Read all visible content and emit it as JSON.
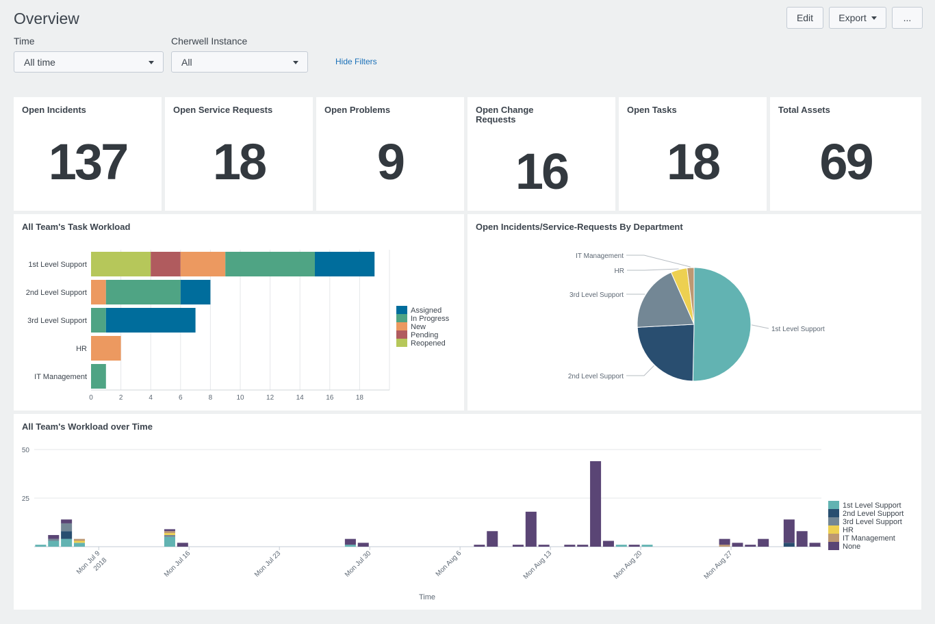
{
  "page": {
    "title": "Overview",
    "buttons": {
      "edit": "Edit",
      "export": "Export",
      "more": "..."
    }
  },
  "filters": {
    "time": {
      "label": "Time",
      "value": "All time"
    },
    "instance": {
      "label": "Cherwell Instance",
      "value": "All"
    },
    "hide_label": "Hide Filters"
  },
  "kpis": [
    {
      "title": "Open Incidents",
      "value": "137"
    },
    {
      "title": "Open Service Requests",
      "value": "18"
    },
    {
      "title": "Open Problems",
      "value": "9"
    },
    {
      "title": "Open Change Requests",
      "value": "16"
    },
    {
      "title": "Open Tasks",
      "value": "18"
    },
    {
      "title": "Total Assets",
      "value": "69"
    }
  ],
  "panels": {
    "task_workload": "All Team's Task Workload",
    "by_department": "Open Incidents/Service-Requests By Department",
    "over_time": "All Team's Workload over Time"
  },
  "chart_data": [
    {
      "type": "bar",
      "orientation": "horizontal",
      "stacked": true,
      "title": "All Team's Task Workload",
      "categories": [
        "1st Level Support",
        "2nd Level Support",
        "3rd Level Support",
        "HR",
        "IT Management"
      ],
      "series": [
        {
          "name": "Reopened",
          "color": "#b6c75a",
          "values": [
            4,
            0,
            0,
            0,
            0
          ]
        },
        {
          "name": "Pending",
          "color": "#b05b5e",
          "values": [
            2,
            0,
            0,
            0,
            0
          ]
        },
        {
          "name": "New",
          "color": "#ec9960",
          "values": [
            3,
            1,
            0,
            2,
            0
          ]
        },
        {
          "name": "In Progress",
          "color": "#4fa484",
          "values": [
            6,
            5,
            1,
            0,
            1
          ]
        },
        {
          "name": "Assigned",
          "color": "#006d9c",
          "values": [
            4,
            2,
            6,
            0,
            0
          ]
        }
      ],
      "legend_order": [
        "Assigned",
        "In Progress",
        "New",
        "Pending",
        "Reopened"
      ],
      "xlim": [
        0,
        20
      ],
      "xticks": [
        0,
        2,
        4,
        6,
        8,
        10,
        12,
        14,
        16,
        18
      ],
      "legend": "right"
    },
    {
      "type": "pie",
      "title": "Open Incidents/Service-Requests By Department",
      "slices": [
        {
          "label": "1st Level Support",
          "value": 76,
          "color": "#62b3b2"
        },
        {
          "label": "2nd Level Support",
          "value": 36,
          "color": "#294e70"
        },
        {
          "label": "3rd Level Support",
          "value": 29,
          "color": "#738795"
        },
        {
          "label": "HR",
          "value": 7,
          "color": "#edd051"
        },
        {
          "label": "IT Management",
          "value": 3,
          "color": "#bd9872"
        }
      ]
    },
    {
      "type": "bar",
      "stacked": true,
      "title": "All Team's Workload over Time",
      "xlabel": "Time",
      "ylabel": "",
      "ylim": [
        0,
        50
      ],
      "yticks": [
        25,
        50
      ],
      "tick_labels": [
        {
          "slot": 5,
          "text": "Mon Jul 9",
          "text2": "2018"
        },
        {
          "slot": 12,
          "text": "Mon Jul 16"
        },
        {
          "slot": 19,
          "text": "Mon Jul 23"
        },
        {
          "slot": 26,
          "text": "Mon Jul 30"
        },
        {
          "slot": 33,
          "text": "Mon Aug 6"
        },
        {
          "slot": 40,
          "text": "Mon Aug 13"
        },
        {
          "slot": 47,
          "text": "Mon Aug 20"
        },
        {
          "slot": 54,
          "text": "Mon Aug 27"
        }
      ],
      "series_names": [
        "1st Level Support",
        "2nd Level Support",
        "3rd Level Support",
        "HR",
        "IT Management",
        "None"
      ],
      "series_colors": [
        "#62b3b2",
        "#294e70",
        "#738795",
        "#edd051",
        "#bd9872",
        "#5a4575"
      ],
      "n_slots": 61,
      "bars": [
        {
          "slot": 0,
          "values": [
            1,
            0,
            0,
            0,
            0,
            0
          ]
        },
        {
          "slot": 1,
          "values": [
            3,
            0,
            1,
            0,
            0,
            2
          ]
        },
        {
          "slot": 2,
          "values": [
            4,
            4,
            4,
            0,
            0,
            2
          ]
        },
        {
          "slot": 3,
          "values": [
            2,
            0,
            0,
            1,
            1,
            0
          ]
        },
        {
          "slot": 10,
          "values": [
            5,
            0,
            1,
            1,
            1,
            1
          ]
        },
        {
          "slot": 11,
          "values": [
            0,
            0,
            0,
            0,
            0,
            2
          ]
        },
        {
          "slot": 24,
          "values": [
            1,
            0,
            0,
            0,
            0,
            3
          ]
        },
        {
          "slot": 25,
          "values": [
            0,
            0,
            0,
            0,
            0,
            2
          ]
        },
        {
          "slot": 34,
          "values": [
            0,
            0,
            0,
            0,
            0,
            1
          ]
        },
        {
          "slot": 35,
          "values": [
            0,
            0,
            0,
            0,
            0,
            8
          ]
        },
        {
          "slot": 37,
          "values": [
            0,
            0,
            0,
            0,
            0,
            1
          ]
        },
        {
          "slot": 38,
          "values": [
            0,
            0,
            0,
            0,
            0,
            18
          ]
        },
        {
          "slot": 39,
          "values": [
            0,
            0,
            0,
            0,
            0,
            1
          ]
        },
        {
          "slot": 41,
          "values": [
            0,
            0,
            0,
            0,
            0,
            1
          ]
        },
        {
          "slot": 42,
          "values": [
            0,
            0,
            0,
            0,
            0,
            1
          ]
        },
        {
          "slot": 43,
          "values": [
            0,
            0,
            0,
            0,
            0,
            44
          ]
        },
        {
          "slot": 44,
          "values": [
            0,
            0,
            0,
            0,
            0,
            3
          ]
        },
        {
          "slot": 45,
          "values": [
            1,
            0,
            0,
            0,
            0,
            0
          ]
        },
        {
          "slot": 46,
          "values": [
            0,
            0,
            0,
            0,
            0,
            1
          ]
        },
        {
          "slot": 47,
          "values": [
            1,
            0,
            0,
            0,
            0,
            0
          ]
        },
        {
          "slot": 53,
          "values": [
            0,
            0,
            0,
            0,
            1,
            3
          ]
        },
        {
          "slot": 54,
          "values": [
            0,
            0,
            0,
            0,
            0,
            2
          ]
        },
        {
          "slot": 55,
          "values": [
            0,
            0,
            0,
            0,
            0,
            1
          ]
        },
        {
          "slot": 56,
          "values": [
            0,
            0,
            0,
            0,
            0,
            4
          ]
        },
        {
          "slot": 58,
          "values": [
            0,
            2,
            0,
            0,
            0,
            12
          ]
        },
        {
          "slot": 59,
          "values": [
            0,
            0,
            0,
            0,
            0,
            8
          ]
        },
        {
          "slot": 60,
          "values": [
            0,
            0,
            0,
            0,
            0,
            2
          ]
        }
      ],
      "legend": "right"
    }
  ]
}
